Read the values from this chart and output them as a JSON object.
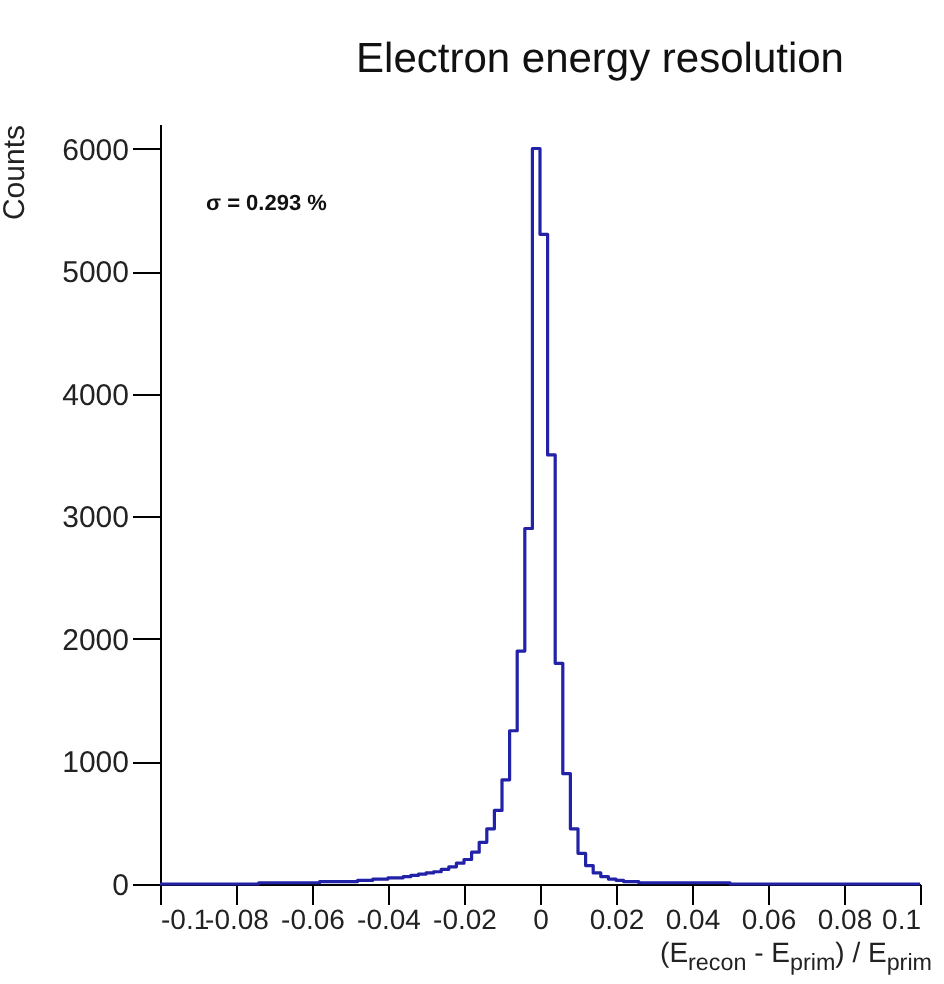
{
  "chart_data": {
    "type": "histogram",
    "title": "Electron energy resolution",
    "xlabel": "(E$_{recon}$ - E$_{prim}$) / E$_{prim}$",
    "ylabel": "Counts",
    "annotations": [
      "σ = 0.293 %"
    ],
    "color": "#2222a8",
    "bins": [
      -0.1,
      -0.098,
      -0.096,
      -0.094,
      -0.092,
      -0.09,
      -0.088,
      -0.086,
      -0.084,
      -0.082,
      -0.08,
      -0.078,
      -0.076,
      -0.074,
      -0.072,
      -0.07,
      -0.068,
      -0.066,
      -0.064,
      -0.062,
      -0.06,
      -0.058,
      -0.056,
      -0.054,
      -0.052,
      -0.05,
      -0.048,
      -0.046,
      -0.044,
      -0.042,
      -0.04,
      -0.038,
      -0.036,
      -0.034,
      -0.032,
      -0.03,
      -0.028,
      -0.026,
      -0.024,
      -0.022,
      -0.02,
      -0.018,
      -0.016,
      -0.014,
      -0.012,
      -0.01,
      -0.008,
      -0.006,
      -0.004,
      -0.002,
      0,
      0.002,
      0.004,
      0.006,
      0.008,
      0.01,
      0.012,
      0.014,
      0.016,
      0.018,
      0.02,
      0.022,
      0.024,
      0.026,
      0.028,
      0.03,
      0.032,
      0.034,
      0.036,
      0.038,
      0.04,
      0.042,
      0.044,
      0.046,
      0.048,
      0.05,
      0.052,
      0.054,
      0.056,
      0.058,
      0.06,
      0.062,
      0.064,
      0.066,
      0.068,
      0.07,
      0.072,
      0.074,
      0.076,
      0.078,
      0.08,
      0.082,
      0.084,
      0.086,
      0.088,
      0.09,
      0.092,
      0.094,
      0.096,
      0.098,
      0.1
    ],
    "values": [
      0,
      0,
      0,
      0,
      0,
      0,
      0,
      0,
      0,
      0,
      0,
      0,
      0,
      10,
      10,
      10,
      10,
      10,
      10,
      10,
      10,
      20,
      20,
      20,
      20,
      20,
      30,
      30,
      40,
      40,
      50,
      50,
      60,
      70,
      80,
      90,
      100,
      120,
      140,
      170,
      200,
      260,
      340,
      450,
      600,
      850,
      1250,
      1900,
      2900,
      6000,
      5300,
      3500,
      1800,
      900,
      450,
      250,
      150,
      90,
      60,
      40,
      30,
      20,
      20,
      10,
      10,
      10,
      10,
      10,
      10,
      10,
      10,
      10,
      10,
      10,
      10,
      0,
      0,
      0,
      0,
      0,
      0,
      0,
      0,
      0,
      0,
      0,
      0,
      0,
      0,
      0,
      0,
      0,
      0,
      0,
      0,
      0,
      0,
      0,
      0,
      0
    ],
    "xlim": [
      -0.1,
      0.1
    ],
    "xticks": [
      -0.1,
      -0.08,
      -0.06,
      -0.04,
      -0.02,
      0,
      0.02,
      0.04,
      0.06,
      0.08,
      0.1
    ],
    "ylim": [
      0,
      6200
    ],
    "yticks": [
      0,
      1000,
      2000,
      3000,
      4000,
      5000,
      6000
    ]
  }
}
